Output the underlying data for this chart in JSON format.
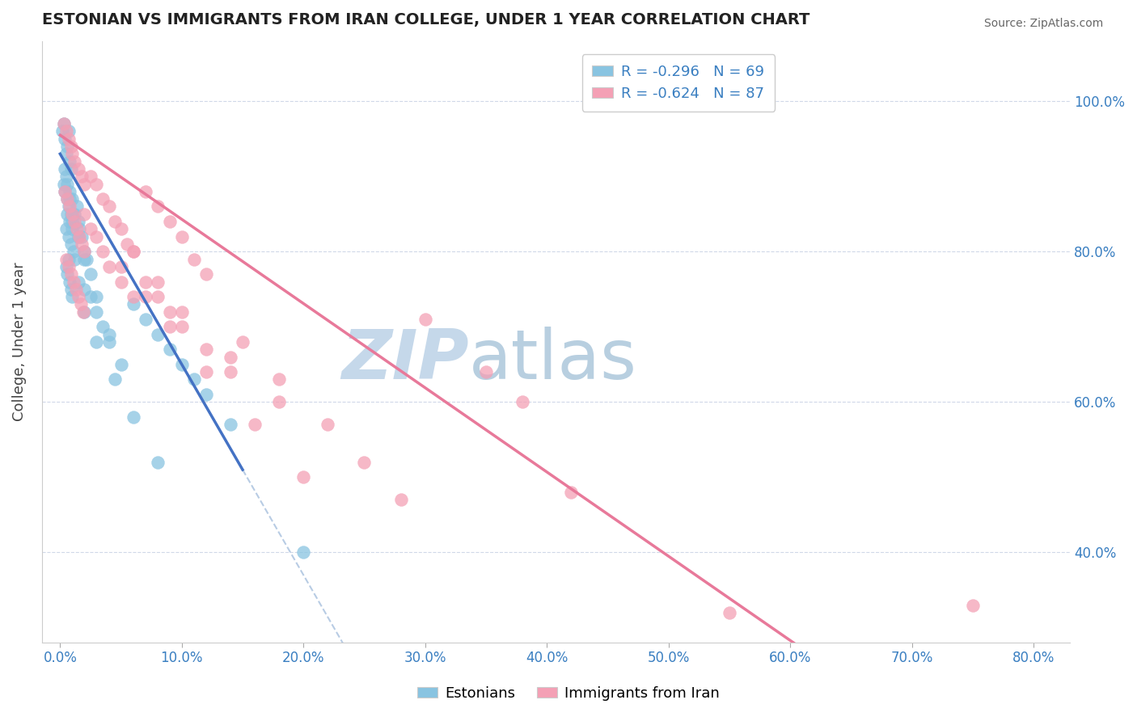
{
  "title": "ESTONIAN VS IMMIGRANTS FROM IRAN COLLEGE, UNDER 1 YEAR CORRELATION CHART",
  "source": "Source: ZipAtlas.com",
  "ylabel": "College, Under 1 year",
  "x_tick_labels": [
    "0.0%",
    "10.0%",
    "20.0%",
    "30.0%",
    "40.0%",
    "50.0%",
    "60.0%",
    "70.0%",
    "80.0%"
  ],
  "x_tick_values": [
    0.0,
    10.0,
    20.0,
    30.0,
    40.0,
    50.0,
    60.0,
    70.0,
    80.0
  ],
  "y_tick_labels": [
    "100.0%",
    "80.0%",
    "60.0%",
    "40.0%"
  ],
  "y_tick_values": [
    100.0,
    80.0,
    60.0,
    40.0
  ],
  "xlim": [
    -1.5,
    83
  ],
  "ylim": [
    28,
    108
  ],
  "legend1_R": "-0.296",
  "legend1_N": "69",
  "legend2_R": "-0.624",
  "legend2_N": "87",
  "color_estonian": "#89c4e1",
  "color_iran": "#f4a0b5",
  "color_line_estonian": "#4472c4",
  "color_line_iran": "#e8799a",
  "color_dashed": "#b8cce4",
  "legend_bottom_labels": [
    "Estonians",
    "Immigrants from Iran"
  ],
  "watermark_zip_color": "#c5d8ea",
  "watermark_atlas_color": "#b8cfe0",
  "est_line_x_start": 0.0,
  "est_line_x_end": 15.0,
  "est_dash_x_start": 15.0,
  "est_dash_x_end": 83.0,
  "iran_line_x_start": 0.0,
  "iran_line_x_end": 83.0,
  "estonian_scatter_x": [
    0.2,
    0.3,
    0.4,
    0.5,
    0.6,
    0.7,
    0.8,
    0.9,
    0.3,
    0.4,
    0.5,
    0.6,
    0.7,
    0.8,
    0.9,
    1.0,
    0.5,
    0.6,
    0.7,
    0.8,
    0.9,
    1.0,
    1.1,
    1.2,
    0.5,
    0.6,
    0.7,
    0.8,
    0.9,
    1.0,
    1.0,
    1.2,
    1.4,
    1.5,
    1.6,
    1.8,
    2.0,
    2.2,
    2.5,
    2.0,
    2.5,
    3.0,
    3.5,
    4.0,
    5.0,
    6.0,
    7.0,
    8.0,
    9.0,
    10.0,
    11.0,
    12.0,
    14.0,
    1.5,
    2.0,
    3.0,
    4.5,
    6.0,
    8.0,
    0.4,
    0.6,
    0.8,
    1.0,
    1.5,
    2.0,
    3.0,
    4.0,
    20.0
  ],
  "estonian_scatter_y": [
    96,
    97,
    95,
    93,
    94,
    96,
    92,
    91,
    89,
    88,
    90,
    87,
    86,
    88,
    85,
    84,
    83,
    85,
    82,
    84,
    81,
    83,
    80,
    79,
    78,
    77,
    79,
    76,
    75,
    74,
    87,
    85,
    86,
    84,
    83,
    82,
    80,
    79,
    77,
    75,
    74,
    72,
    70,
    68,
    65,
    73,
    71,
    69,
    67,
    65,
    63,
    61,
    57,
    76,
    72,
    68,
    63,
    58,
    52,
    91,
    89,
    87,
    85,
    82,
    79,
    74,
    69,
    40
  ],
  "iran_scatter_x": [
    0.3,
    0.5,
    0.7,
    0.9,
    1.0,
    1.2,
    1.5,
    1.8,
    2.0,
    0.4,
    0.6,
    0.8,
    1.0,
    1.2,
    1.4,
    1.6,
    1.8,
    2.0,
    0.5,
    0.7,
    0.9,
    1.1,
    1.3,
    1.5,
    1.7,
    1.9,
    2.5,
    3.0,
    3.5,
    4.0,
    4.5,
    5.0,
    5.5,
    6.0,
    2.0,
    2.5,
    3.0,
    3.5,
    4.0,
    5.0,
    6.0,
    7.0,
    8.0,
    9.0,
    10.0,
    11.0,
    12.0,
    7.0,
    8.0,
    9.0,
    10.0,
    12.0,
    14.0,
    6.0,
    8.0,
    10.0,
    14.0,
    18.0,
    5.0,
    7.0,
    9.0,
    12.0,
    16.0,
    20.0,
    15.0,
    18.0,
    22.0,
    25.0,
    28.0,
    30.0,
    35.0,
    38.0,
    55.0,
    75.0,
    42.0
  ],
  "iran_scatter_y": [
    97,
    96,
    95,
    94,
    93,
    92,
    91,
    90,
    89,
    88,
    87,
    86,
    85,
    84,
    83,
    82,
    81,
    80,
    79,
    78,
    77,
    76,
    75,
    74,
    73,
    72,
    90,
    89,
    87,
    86,
    84,
    83,
    81,
    80,
    85,
    83,
    82,
    80,
    78,
    76,
    74,
    88,
    86,
    84,
    82,
    79,
    77,
    76,
    74,
    72,
    70,
    67,
    64,
    80,
    76,
    72,
    66,
    60,
    78,
    74,
    70,
    64,
    57,
    50,
    68,
    63,
    57,
    52,
    47,
    71,
    64,
    60,
    32,
    33,
    48
  ],
  "est_line_slope": -2.8,
  "est_line_intercept": 93.0,
  "iran_line_slope": -1.12,
  "iran_line_intercept": 95.5
}
